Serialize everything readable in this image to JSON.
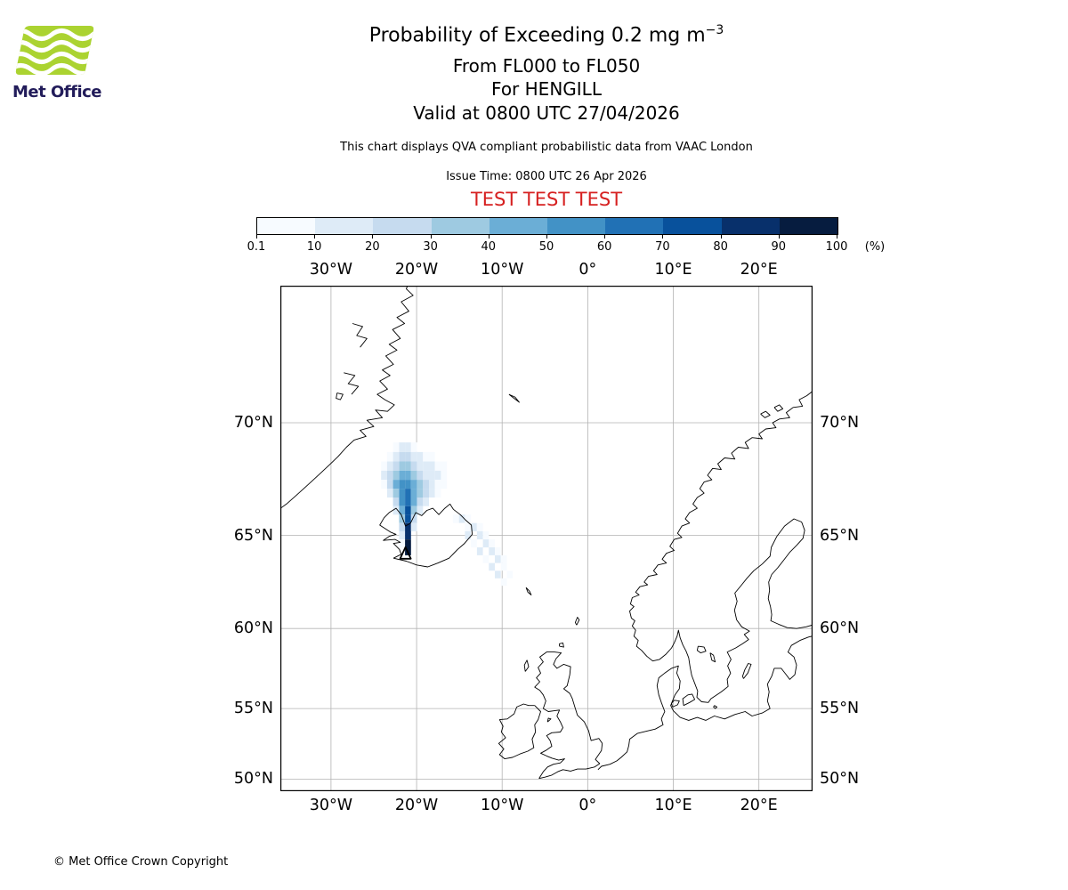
{
  "logo": {
    "brand": "Met Office",
    "green": "#abd331",
    "text_color": "#221c5a"
  },
  "header": {
    "title": "Probability of Exceeding 0.2 mg m",
    "title_exponent": "−3",
    "subtitle1": "From FL000 to FL050",
    "subtitle2": "For HENGILL",
    "subtitle3": "Valid at 0800 UTC 27/04/2026",
    "info": "This chart displays QVA compliant probabilistic data from VAAC London",
    "issue_time": "Issue Time: 0800 UTC 26 Apr 2026",
    "test_banner": "TEST TEST TEST",
    "test_color": "#d62020"
  },
  "colorbar": {
    "unit": "(%)",
    "tick_labels": [
      "0.1",
      "10",
      "20",
      "30",
      "40",
      "50",
      "60",
      "70",
      "80",
      "90",
      "100"
    ],
    "colors": [
      "#f7fbff",
      "#deebf7",
      "#c6dbef",
      "#9ecae1",
      "#6baed6",
      "#4292c6",
      "#2171b5",
      "#08519c",
      "#08306b",
      "#061c3f"
    ]
  },
  "map": {
    "grid_color": "#b3b3b3",
    "lon_tick_values": [
      -30,
      -20,
      -10,
      0,
      10,
      20
    ],
    "lon_tick_labels": [
      "30°W",
      "20°W",
      "10°W",
      "0°",
      "10°E",
      "20°E"
    ],
    "lat_tick_values": [
      70,
      65,
      60,
      55,
      50
    ],
    "lat_tick_labels": [
      "70°N",
      "65°N",
      "60°N",
      "55°N",
      "50°N"
    ]
  },
  "chart_data": {
    "type": "heatmap",
    "title": "Probability of Exceeding 0.2 mg m-3",
    "threshold": "0.2 mg m-3",
    "flight_levels": "FL000 to FL050",
    "volcano": {
      "name": "HENGILL",
      "lon": -21.3,
      "lat": 64.05
    },
    "projection": "mercator",
    "extent": {
      "lon_min": -35.9,
      "lon_max": 26.3,
      "lat_min": 49.1,
      "lat_max": 74.9
    },
    "levels_percent": [
      0.1,
      10,
      20,
      30,
      40,
      50,
      60,
      70,
      80,
      90,
      100
    ],
    "cell_size": {
      "dlon": 0.7,
      "dlat": 0.4
    },
    "cells": [
      [
        -22.4,
        68.8,
        0
      ],
      [
        -21.7,
        68.8,
        1
      ],
      [
        -21.0,
        68.8,
        1
      ],
      [
        -20.3,
        68.8,
        0
      ],
      [
        -23.1,
        68.4,
        0
      ],
      [
        -22.4,
        68.4,
        1
      ],
      [
        -21.7,
        68.4,
        2
      ],
      [
        -21.0,
        68.4,
        2
      ],
      [
        -20.3,
        68.4,
        1
      ],
      [
        -19.6,
        68.4,
        1
      ],
      [
        -18.9,
        68.4,
        0
      ],
      [
        -18.2,
        68.4,
        0
      ],
      [
        -23.8,
        68.0,
        0
      ],
      [
        -23.1,
        68.0,
        1
      ],
      [
        -22.4,
        68.0,
        2
      ],
      [
        -21.7,
        68.0,
        3
      ],
      [
        -21.0,
        68.0,
        3
      ],
      [
        -20.3,
        68.0,
        2
      ],
      [
        -19.6,
        68.0,
        1
      ],
      [
        -18.9,
        68.0,
        1
      ],
      [
        -18.2,
        68.0,
        1
      ],
      [
        -17.5,
        68.0,
        0
      ],
      [
        -16.8,
        68.0,
        0
      ],
      [
        -23.8,
        67.6,
        1
      ],
      [
        -23.1,
        67.6,
        2
      ],
      [
        -22.4,
        67.6,
        3
      ],
      [
        -21.7,
        67.6,
        4
      ],
      [
        -21.0,
        67.6,
        4
      ],
      [
        -20.3,
        67.6,
        3
      ],
      [
        -19.6,
        67.6,
        2
      ],
      [
        -18.9,
        67.6,
        1
      ],
      [
        -18.2,
        67.6,
        1
      ],
      [
        -17.5,
        67.6,
        1
      ],
      [
        -16.8,
        67.6,
        0
      ],
      [
        -23.8,
        67.2,
        0
      ],
      [
        -23.1,
        67.2,
        2
      ],
      [
        -22.4,
        67.2,
        4
      ],
      [
        -21.7,
        67.2,
        5
      ],
      [
        -21.0,
        67.2,
        5
      ],
      [
        -20.3,
        67.2,
        4
      ],
      [
        -19.6,
        67.2,
        3
      ],
      [
        -18.9,
        67.2,
        2
      ],
      [
        -18.2,
        67.2,
        1
      ],
      [
        -17.5,
        67.2,
        0
      ],
      [
        -16.8,
        67.2,
        0
      ],
      [
        -23.1,
        66.8,
        1
      ],
      [
        -22.4,
        66.8,
        3
      ],
      [
        -21.7,
        66.8,
        5
      ],
      [
        -21.0,
        66.8,
        6
      ],
      [
        -20.3,
        66.8,
        4
      ],
      [
        -19.6,
        66.8,
        3
      ],
      [
        -18.9,
        66.8,
        2
      ],
      [
        -18.2,
        66.8,
        1
      ],
      [
        -17.5,
        66.8,
        0
      ],
      [
        -22.4,
        66.4,
        2
      ],
      [
        -21.7,
        66.4,
        5
      ],
      [
        -21.0,
        66.4,
        6
      ],
      [
        -20.3,
        66.4,
        4
      ],
      [
        -19.6,
        66.4,
        2
      ],
      [
        -18.9,
        66.4,
        1
      ],
      [
        -22.4,
        66.0,
        1
      ],
      [
        -21.7,
        66.0,
        4
      ],
      [
        -21.0,
        66.0,
        7
      ],
      [
        -20.3,
        66.0,
        3
      ],
      [
        -19.6,
        66.0,
        1
      ],
      [
        -21.7,
        65.6,
        3
      ],
      [
        -21.0,
        65.6,
        7
      ],
      [
        -20.3,
        65.6,
        2
      ],
      [
        -21.7,
        65.2,
        2
      ],
      [
        -21.0,
        65.2,
        8
      ],
      [
        -20.3,
        65.2,
        1
      ],
      [
        -21.7,
        64.8,
        1
      ],
      [
        -21.0,
        64.8,
        8
      ],
      [
        -21.7,
        64.4,
        0
      ],
      [
        -21.0,
        64.4,
        9
      ],
      [
        -21.0,
        64.0,
        9
      ],
      [
        -15.4,
        65.6,
        0
      ],
      [
        -14.7,
        65.6,
        1
      ],
      [
        -14.0,
        65.6,
        0
      ],
      [
        -14.0,
        65.2,
        0
      ],
      [
        -13.3,
        65.2,
        1
      ],
      [
        -12.6,
        65.2,
        0
      ],
      [
        -14.0,
        64.8,
        1
      ],
      [
        -12.6,
        64.8,
        1
      ],
      [
        -11.9,
        64.8,
        0
      ],
      [
        -13.3,
        64.4,
        0
      ],
      [
        -11.9,
        64.4,
        1
      ],
      [
        -11.2,
        64.4,
        0
      ],
      [
        -12.6,
        64.0,
        1
      ],
      [
        -11.2,
        64.0,
        1
      ],
      [
        -10.5,
        64.0,
        0
      ],
      [
        -11.9,
        63.6,
        0
      ],
      [
        -10.5,
        63.6,
        1
      ],
      [
        -9.8,
        63.6,
        0
      ],
      [
        -11.2,
        63.2,
        1
      ],
      [
        -9.8,
        63.2,
        0
      ],
      [
        -10.5,
        62.8,
        1
      ],
      [
        -9.1,
        62.8,
        0
      ],
      [
        -9.8,
        62.4,
        0
      ]
    ]
  },
  "footer": {
    "copyright": "© Met Office Crown Copyright"
  }
}
